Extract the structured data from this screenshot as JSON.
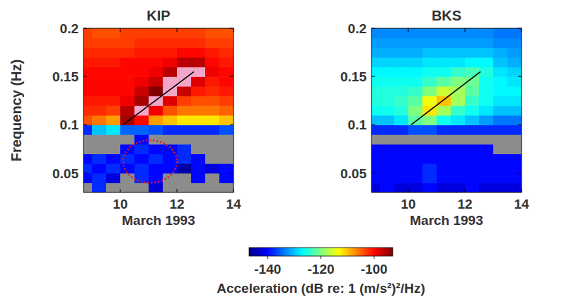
{
  "chart_data": [
    {
      "type": "heatmap",
      "title": "KIP",
      "x_label": "March 1993",
      "y_label": "Frequency  (Hz)",
      "xlim": [
        8.7,
        14
      ],
      "ylim": [
        0.03,
        0.2
      ],
      "xticks": [
        10,
        12,
        14
      ],
      "yticks": [
        0.05,
        0.1,
        0.15,
        0.2
      ],
      "x_edges": [
        8.7,
        9,
        9.5,
        10,
        10.5,
        11,
        11.5,
        12,
        12.5,
        13,
        13.5,
        14
      ],
      "y_edges": [
        0.03,
        0.04,
        0.05,
        0.06,
        0.07,
        0.08,
        0.09,
        0.1,
        0.11,
        0.12,
        0.13,
        0.14,
        0.15,
        0.16,
        0.17,
        0.18,
        0.19,
        0.2
      ],
      "z": [
        [
          -150,
          -138,
          -150,
          -150,
          -150,
          -142,
          -150,
          -150,
          -150,
          -150,
          -150
        ],
        [
          -140,
          -138,
          -142,
          -150,
          -138,
          -140,
          -150,
          -150,
          -140,
          -150,
          -140
        ],
        [
          -138,
          -140,
          -138,
          -140,
          -138,
          -140,
          -140,
          -145,
          -140,
          -142,
          -140
        ],
        [
          -140,
          -138,
          -140,
          -138,
          -140,
          -138,
          -140,
          -138,
          -140,
          -150,
          -150
        ],
        [
          -150,
          -150,
          -150,
          -140,
          -138,
          -140,
          -140,
          -138,
          -150,
          -150,
          -150
        ],
        [
          -150,
          -150,
          -150,
          -150,
          -140,
          -150,
          -150,
          -150,
          -150,
          -150,
          -150
        ],
        [
          -138,
          -130,
          -128,
          -135,
          -135,
          -136,
          -138,
          -138,
          -138,
          -138,
          -136
        ],
        [
          -104,
          -106,
          -108,
          -95,
          -100,
          -108,
          -110,
          -112,
          -112,
          -112,
          -110
        ],
        [
          -102,
          -102,
          -103,
          -96,
          -90,
          -99,
          -104,
          -106,
          -106,
          -106,
          -105
        ],
        [
          -101,
          -101,
          -101,
          -99,
          -95,
          -90,
          -98,
          -103,
          -104,
          -104,
          -103
        ],
        [
          -100,
          -100,
          -100,
          -100,
          -97,
          -93,
          -90,
          -97,
          -101,
          -102,
          -101
        ],
        [
          -100,
          -100,
          -100,
          -100,
          -99,
          -97,
          -92,
          -90,
          -98,
          -101,
          -100
        ],
        [
          -100,
          -100,
          -100,
          -100,
          -100,
          -99,
          -96,
          -91,
          -90,
          -99,
          -100
        ],
        [
          -101,
          -101,
          -101,
          -100,
          -100,
          -100,
          -99,
          -96,
          -96,
          -100,
          -101
        ],
        [
          -102,
          -102,
          -102,
          -102,
          -101,
          -101,
          -101,
          -100,
          -100,
          -101,
          -102
        ],
        [
          -103,
          -103,
          -103,
          -103,
          -102,
          -102,
          -102,
          -102,
          -102,
          -103,
          -103
        ],
        [
          -103,
          -104,
          -104,
          -103,
          -103,
          -103,
          -103,
          -103,
          -103,
          -104,
          -104
        ]
      ],
      "line": {
        "x": [
          10.1,
          12.6
        ],
        "y": [
          0.1,
          0.155
        ]
      },
      "ellipse": {
        "cx": 11.05,
        "cy": 0.062,
        "rx": 0.95,
        "ry": 0.022
      }
    },
    {
      "type": "heatmap",
      "title": "BKS",
      "x_label": "March 1993",
      "xlim": [
        8.7,
        14
      ],
      "ylim": [
        0.03,
        0.2
      ],
      "xticks": [
        10,
        12,
        14
      ],
      "yticks": [
        0.05,
        0.1,
        0.15,
        0.2
      ],
      "x_edges": [
        8.7,
        9,
        9.5,
        10,
        10.5,
        11,
        11.5,
        12,
        12.5,
        13,
        13.5,
        14
      ],
      "y_edges": [
        0.03,
        0.04,
        0.05,
        0.06,
        0.07,
        0.08,
        0.09,
        0.1,
        0.11,
        0.12,
        0.13,
        0.14,
        0.15,
        0.16,
        0.17,
        0.18,
        0.19,
        0.2
      ],
      "z": [
        [
          -142,
          -140,
          -142,
          -142,
          -140,
          -142,
          -142,
          -140,
          -142,
          -142,
          -142
        ],
        [
          -140,
          -140,
          -140,
          -140,
          -138,
          -140,
          -140,
          -140,
          -140,
          -140,
          -140
        ],
        [
          -140,
          -140,
          -140,
          -140,
          -138,
          -140,
          -140,
          -140,
          -140,
          -140,
          -140
        ],
        [
          -140,
          -140,
          -140,
          -140,
          -140,
          -140,
          -140,
          -140,
          -140,
          -140,
          -140
        ],
        [
          -140,
          -140,
          -140,
          -140,
          -140,
          -140,
          -140,
          -140,
          -140,
          -150,
          -150
        ],
        [
          -150,
          -150,
          -150,
          -150,
          -150,
          -150,
          -150,
          -150,
          -150,
          -150,
          -150
        ],
        [
          -138,
          -138,
          -138,
          -136,
          -136,
          -138,
          -138,
          -138,
          -138,
          -138,
          -138
        ],
        [
          -130,
          -130,
          -128,
          -122,
          -120,
          -126,
          -128,
          -130,
          -132,
          -134,
          -134
        ],
        [
          -126,
          -126,
          -125,
          -120,
          -112,
          -118,
          -124,
          -126,
          -128,
          -130,
          -130
        ],
        [
          -125,
          -125,
          -124,
          -122,
          -114,
          -110,
          -118,
          -124,
          -126,
          -128,
          -128
        ],
        [
          -125,
          -125,
          -125,
          -124,
          -120,
          -116,
          -118,
          -122,
          -126,
          -127,
          -127
        ],
        [
          -126,
          -126,
          -126,
          -126,
          -124,
          -122,
          -120,
          -121,
          -126,
          -127,
          -128
        ],
        [
          -127,
          -127,
          -127,
          -127,
          -126,
          -126,
          -124,
          -123,
          -125,
          -128,
          -129
        ],
        [
          -129,
          -129,
          -129,
          -129,
          -128,
          -128,
          -128,
          -127,
          -127,
          -130,
          -131
        ],
        [
          -131,
          -131,
          -131,
          -131,
          -130,
          -130,
          -130,
          -130,
          -130,
          -131,
          -132
        ],
        [
          -132,
          -132,
          -132,
          -132,
          -132,
          -132,
          -132,
          -132,
          -132,
          -133,
          -133
        ],
        [
          -133,
          -133,
          -133,
          -133,
          -133,
          -133,
          -133,
          -133,
          -133,
          -134,
          -134
        ]
      ],
      "line": {
        "x": [
          10.1,
          12.55
        ],
        "y": [
          0.1,
          0.155
        ]
      }
    }
  ],
  "colorbar": {
    "clim": [
      -147,
      -93
    ],
    "ticks": [
      -140,
      -120,
      -100
    ],
    "label": "Acceleration  (dB re: 1 (m/s²)²/Hz)"
  }
}
